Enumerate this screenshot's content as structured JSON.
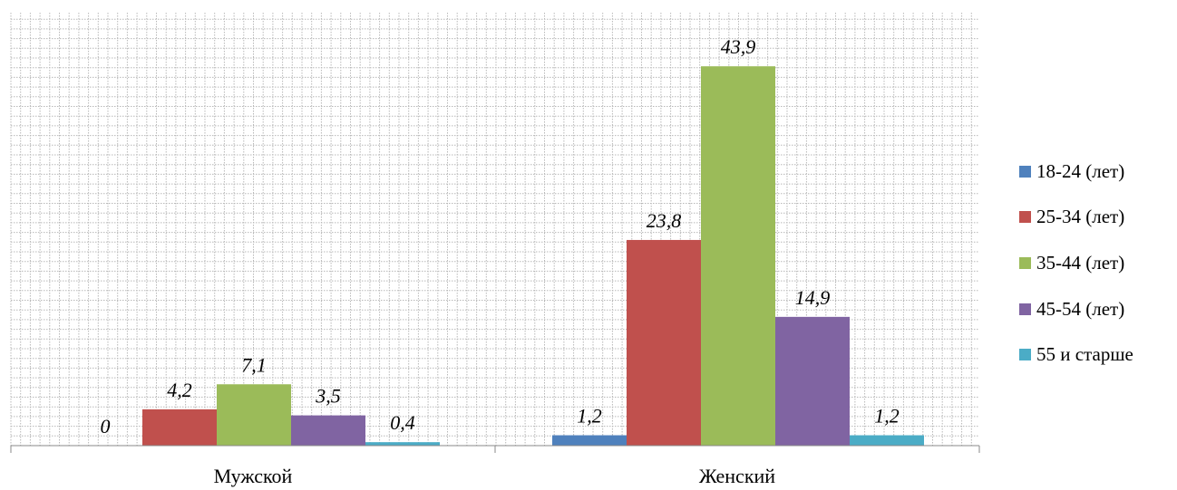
{
  "chart_data": {
    "type": "bar",
    "categories": [
      "Мужской",
      "Женский"
    ],
    "series": [
      {
        "name": "18-24 (лет)",
        "color": "#4F81BD",
        "values": [
          0,
          1.2
        ],
        "labels": [
          "0",
          "1,2"
        ]
      },
      {
        "name": "25-34 (лет)",
        "color": "#C0504D",
        "values": [
          4.2,
          23.8
        ],
        "labels": [
          "4,2",
          "23,8"
        ]
      },
      {
        "name": "35-44 (лет)",
        "color": "#9BBB59",
        "values": [
          7.1,
          43.9
        ],
        "labels": [
          "7,1",
          "43,9"
        ]
      },
      {
        "name": "45-54 (лет)",
        "color": "#8064A2",
        "values": [
          3.5,
          14.9
        ],
        "labels": [
          "3,5",
          "14,9"
        ]
      },
      {
        "name": "55 и старше",
        "color": "#4BACC6",
        "values": [
          0.4,
          1.2
        ],
        "labels": [
          "0,4",
          "1,2"
        ]
      }
    ],
    "ylim": [
      0,
      50
    ],
    "grid": true,
    "legend": "right",
    "title": "",
    "xlabel": "",
    "ylabel": ""
  }
}
